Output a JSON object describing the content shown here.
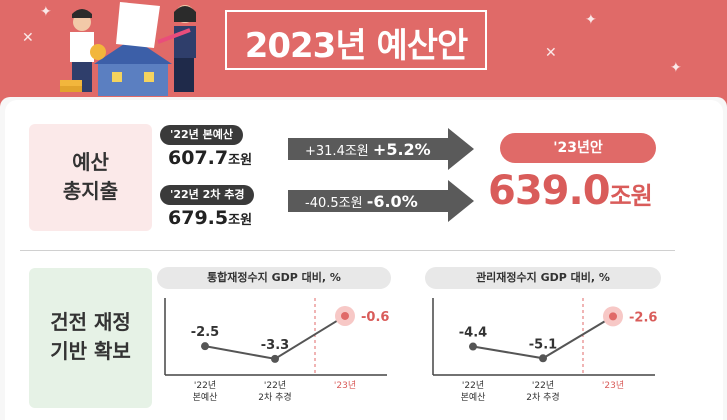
{
  "title": "2023년 예산안",
  "section1": {
    "label_lines": [
      "예산",
      "총지출"
    ],
    "rows": [
      {
        "tag": "'22년 본예산",
        "amount": "607.7",
        "unit": "조원",
        "delta": "+31.4조원",
        "pct": "+5.2%"
      },
      {
        "tag": "'22년 2차 추경",
        "amount": "679.5",
        "unit": "조원",
        "delta": "-40.5조원",
        "pct": "-6.0%"
      }
    ],
    "result_tag": "'23년안",
    "result_amount": "639.0",
    "result_unit": "조원"
  },
  "section2": {
    "label_lines": [
      "건전 재정",
      "기반 확보"
    ],
    "charts": [
      {
        "title": "통합재정수지 GDP 대비, %",
        "categories": [
          [
            "'22년",
            "본예산"
          ],
          [
            "'22년",
            "2차 추경"
          ],
          [
            "'23년"
          ]
        ],
        "values": [
          -2.5,
          -3.3,
          -0.6
        ],
        "labels": [
          "-2.5",
          "-3.3",
          "-0.6"
        ]
      },
      {
        "title": "관리재정수지 GDP 대비, %",
        "categories": [
          [
            "'22년",
            "본예산"
          ],
          [
            "'22년",
            "2차 추경"
          ],
          [
            "'23년"
          ]
        ],
        "values": [
          -4.4,
          -5.1,
          -2.6
        ],
        "labels": [
          "-4.4",
          "-5.1",
          "-2.6"
        ]
      }
    ]
  },
  "colors": {
    "accent": "#e06a68",
    "highlight": "#d95c5a",
    "arrow": "#5a5a5a"
  }
}
